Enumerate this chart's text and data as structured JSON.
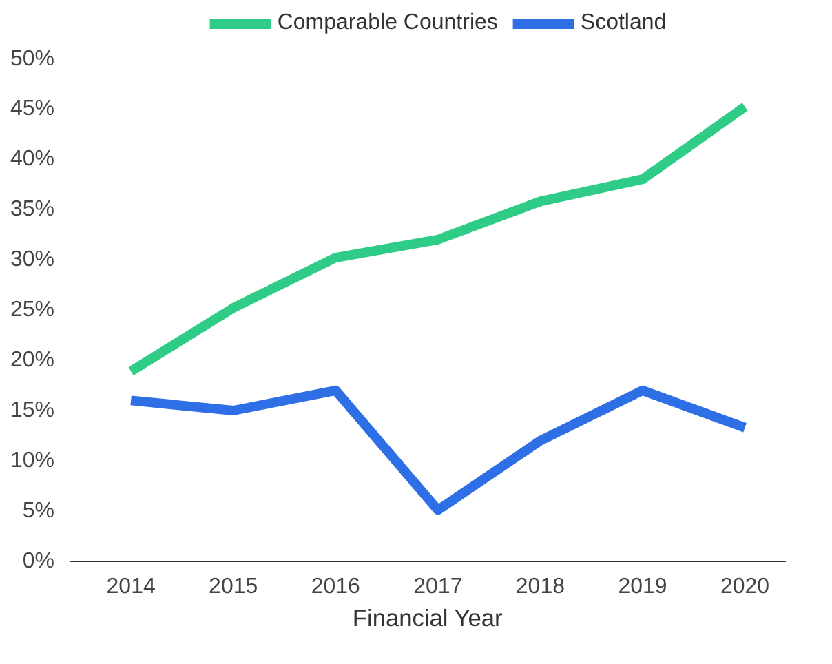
{
  "chart_data": {
    "type": "line",
    "xlabel": "Financial Year",
    "categories": [
      "2014",
      "2015",
      "2016",
      "2017",
      "2018",
      "2019",
      "2020"
    ],
    "series": [
      {
        "name": "Comparable Countries",
        "color": "#2ecc87",
        "values": [
          18.9,
          25.2,
          30.2,
          32,
          35.8,
          38,
          45.2
        ]
      },
      {
        "name": "Scotland",
        "color": "#2f6fe6",
        "values": [
          16,
          15,
          17,
          5.1,
          12,
          17,
          13.3
        ]
      }
    ],
    "ylim": [
      0,
      50
    ],
    "yticks": [
      {
        "value": 0,
        "label": "0%"
      },
      {
        "value": 5,
        "label": "5%"
      },
      {
        "value": 10,
        "label": "10%"
      },
      {
        "value": 15,
        "label": "15%"
      },
      {
        "value": 20,
        "label": "20%"
      },
      {
        "value": 25,
        "label": "25%"
      },
      {
        "value": 30,
        "label": "30%"
      },
      {
        "value": 35,
        "label": "35%"
      },
      {
        "value": 40,
        "label": "40%"
      },
      {
        "value": 45,
        "label": "45%"
      },
      {
        "value": 50,
        "label": "50%"
      }
    ],
    "grid": false,
    "legend": "top",
    "marker": "none",
    "line_style": "solid"
  }
}
